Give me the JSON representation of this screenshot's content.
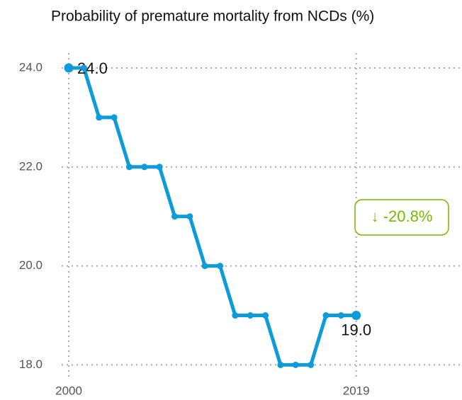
{
  "chart_data": {
    "type": "line",
    "title": "Probability of premature mortality from NCDs (%)",
    "x": [
      2000,
      2001,
      2002,
      2003,
      2004,
      2005,
      2006,
      2007,
      2008,
      2009,
      2010,
      2011,
      2012,
      2013,
      2014,
      2015,
      2016,
      2017,
      2018,
      2019
    ],
    "series": [
      {
        "color": "#0d9bd9",
        "values": [
          24,
          24,
          23,
          23,
          22,
          22,
          22,
          21,
          21,
          20,
          20,
          19,
          19,
          19,
          18,
          18,
          18,
          19,
          19,
          19
        ],
        "value_labels": [
          "24.0",
          null,
          null,
          null,
          null,
          null,
          null,
          null,
          null,
          null,
          null,
          null,
          null,
          null,
          null,
          null,
          null,
          null,
          null,
          "19.0"
        ]
      }
    ],
    "xlim": [
      1999.53,
      2025.9
    ],
    "xticks": [
      2000,
      2019
    ],
    "ylim": [
      17.72,
      24.3
    ],
    "yticks": [
      {
        "value": 18,
        "label": "18.0"
      },
      {
        "value": 20,
        "label": "20.0"
      },
      {
        "value": 22,
        "label": "22.0"
      },
      {
        "value": 24,
        "label": "24.0"
      }
    ],
    "grid": true,
    "annotation": "↓ -20.8%",
    "annotation_color": "#7ab800"
  }
}
